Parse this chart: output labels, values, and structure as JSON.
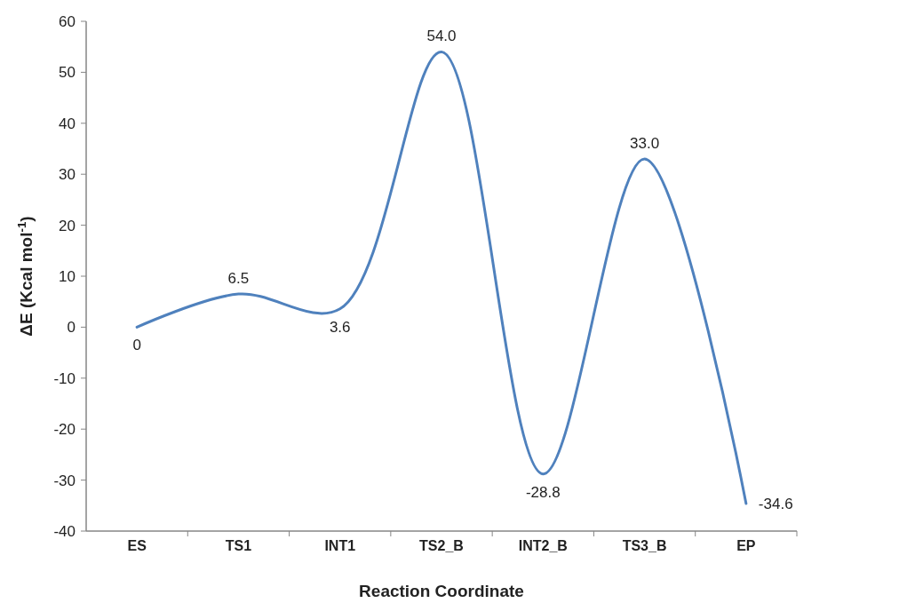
{
  "chart_data": {
    "type": "line",
    "xlabel": "Reaction Coordinate",
    "ylabel": "ΔE (Kcal mol$^{-1}$)",
    "categories": [
      "ES",
      "TS1",
      "INT1",
      "TS2_B",
      "INT2_B",
      "TS3_B",
      "EP"
    ],
    "series": [
      {
        "color": "#4f81bd",
        "values": [
          0,
          6.5,
          3.6,
          54.0,
          -28.8,
          33.0,
          -34.6
        ],
        "value_labels": [
          "0",
          "6.5",
          "3.6",
          "54.0",
          "-28.8",
          "33.0",
          "-34.6"
        ]
      }
    ],
    "ylim": [
      -40,
      60
    ],
    "yticks": [
      -40,
      -30,
      -20,
      -10,
      0,
      10,
      20,
      30,
      40,
      50,
      60
    ],
    "grid": false,
    "marker": "none",
    "line_style": "solid"
  }
}
